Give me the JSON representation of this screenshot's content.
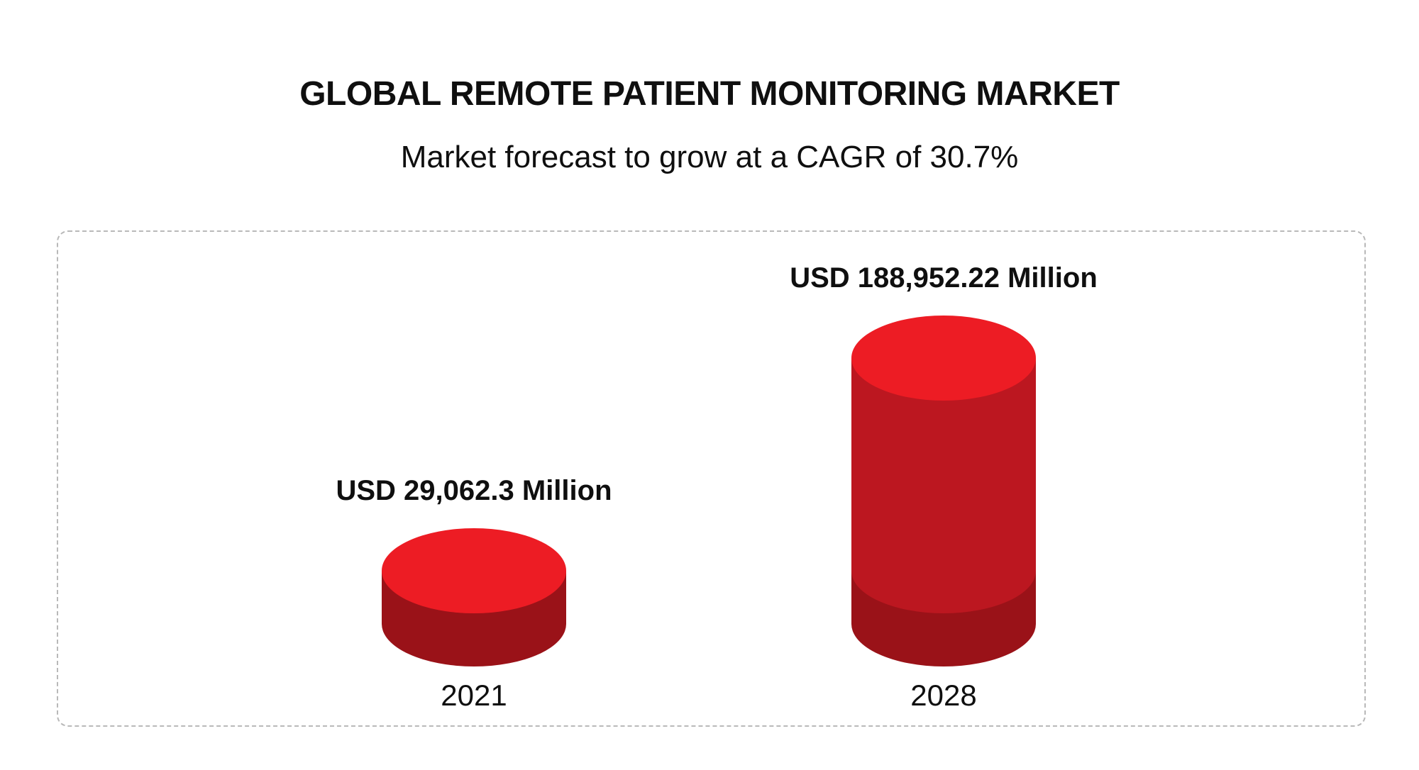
{
  "header": {
    "title": "GLOBAL REMOTE PATIENT MONITORING MARKET",
    "subtitle": "Market forecast to grow at a CAGR of 30.7%"
  },
  "colors": {
    "cap": "#ed1c24",
    "body": "#bc1720",
    "base": "#9a1218",
    "text": "#0f0f0f",
    "panel_border": "#b9b9b9"
  },
  "chart_data": {
    "type": "bar",
    "style": "3d-cylinder",
    "title": "GLOBAL REMOTE PATIENT MONITORING MARKET",
    "subtitle": "Market forecast to grow at a CAGR of 30.7%",
    "categories": [
      "2021",
      "2028"
    ],
    "values": [
      29062.3,
      188952.22
    ],
    "value_labels": [
      "USD 29,062.3 Million",
      "USD 188,952.22 Million"
    ],
    "xlabel": "",
    "ylabel": "",
    "grid": false,
    "legend": "none"
  }
}
